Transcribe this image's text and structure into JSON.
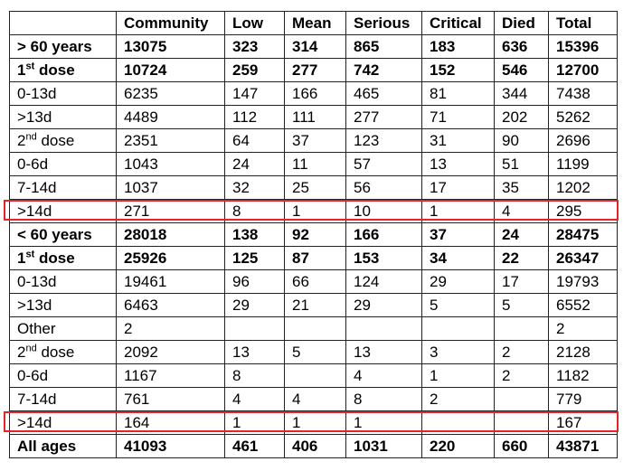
{
  "table": {
    "headers": [
      "",
      "Community",
      "Low",
      "Mean",
      "Serious",
      "Critical",
      "Died",
      "Total"
    ],
    "rows": [
      {
        "label": "> 60 years",
        "sup": "",
        "label_rest": "",
        "bold": true,
        "cells": [
          "13075",
          "323",
          "314",
          "865",
          "183",
          "636",
          "15396"
        ]
      },
      {
        "label": "1",
        "sup": "st",
        "label_rest": " dose",
        "bold": true,
        "cells": [
          "10724",
          "259",
          "277",
          "742",
          "152",
          "546",
          "12700"
        ]
      },
      {
        "label": "0-13d",
        "sup": "",
        "label_rest": "",
        "bold": false,
        "cells": [
          "6235",
          "147",
          "166",
          "465",
          "81",
          "344",
          "7438"
        ]
      },
      {
        "label": ">13d",
        "sup": "",
        "label_rest": "",
        "bold": false,
        "cells": [
          "4489",
          "112",
          "111",
          "277",
          "71",
          "202",
          "5262"
        ]
      },
      {
        "label": "2",
        "sup": "nd",
        "label_rest": " dose",
        "bold": false,
        "cells": [
          "2351",
          "64",
          "37",
          "123",
          "31",
          "90",
          "2696"
        ]
      },
      {
        "label": "0-6d",
        "sup": "",
        "label_rest": "",
        "bold": false,
        "cells": [
          "1043",
          "24",
          "11",
          "57",
          "13",
          "51",
          "1199"
        ]
      },
      {
        "label": "7-14d",
        "sup": "",
        "label_rest": "",
        "bold": false,
        "cells": [
          "1037",
          "32",
          "25",
          "56",
          "17",
          "35",
          "1202"
        ]
      },
      {
        "label": ">14d",
        "sup": "",
        "label_rest": "",
        "bold": false,
        "highlight": true,
        "cells": [
          "271",
          "8",
          "1",
          "10",
          "1",
          "4",
          "295"
        ]
      },
      {
        "label": "< 60 years",
        "sup": "",
        "label_rest": "",
        "bold": true,
        "cells": [
          "28018",
          "138",
          "92",
          "166",
          "37",
          "24",
          "28475"
        ]
      },
      {
        "label": "1",
        "sup": "st",
        "label_rest": " dose",
        "bold": true,
        "cells": [
          "25926",
          "125",
          "87",
          "153",
          "34",
          "22",
          "26347"
        ]
      },
      {
        "label": "0-13d",
        "sup": "",
        "label_rest": "",
        "bold": false,
        "cells": [
          "19461",
          "96",
          "66",
          "124",
          "29",
          "17",
          "19793"
        ]
      },
      {
        "label": ">13d",
        "sup": "",
        "label_rest": "",
        "bold": false,
        "cells": [
          "6463",
          "29",
          "21",
          "29",
          "5",
          "5",
          "6552"
        ]
      },
      {
        "label": "Other",
        "sup": "",
        "label_rest": "",
        "bold": false,
        "cells": [
          "2",
          "",
          "",
          "",
          "",
          "",
          "2"
        ]
      },
      {
        "label": "2",
        "sup": "nd",
        "label_rest": " dose",
        "bold": false,
        "cells": [
          "2092",
          "13",
          "5",
          "13",
          "3",
          "2",
          "2128"
        ]
      },
      {
        "label": "0-6d",
        "sup": "",
        "label_rest": "",
        "bold": false,
        "cells": [
          "1167",
          "8",
          "",
          "4",
          "1",
          "2",
          "1182"
        ]
      },
      {
        "label": "7-14d",
        "sup": "",
        "label_rest": "",
        "bold": false,
        "cells": [
          "761",
          "4",
          "4",
          "8",
          "2",
          "",
          "779"
        ]
      },
      {
        "label": ">14d",
        "sup": "",
        "label_rest": "",
        "bold": false,
        "highlight": true,
        "cells": [
          "164",
          "1",
          "1",
          "1",
          "",
          "",
          "167"
        ]
      },
      {
        "label": "All ages",
        "sup": "",
        "label_rest": "",
        "bold": true,
        "cells": [
          "41093",
          "461",
          "406",
          "1031",
          "220",
          "660",
          "43871"
        ]
      }
    ]
  },
  "colors": {
    "highlight": "#e3242b",
    "border": "#222222"
  }
}
